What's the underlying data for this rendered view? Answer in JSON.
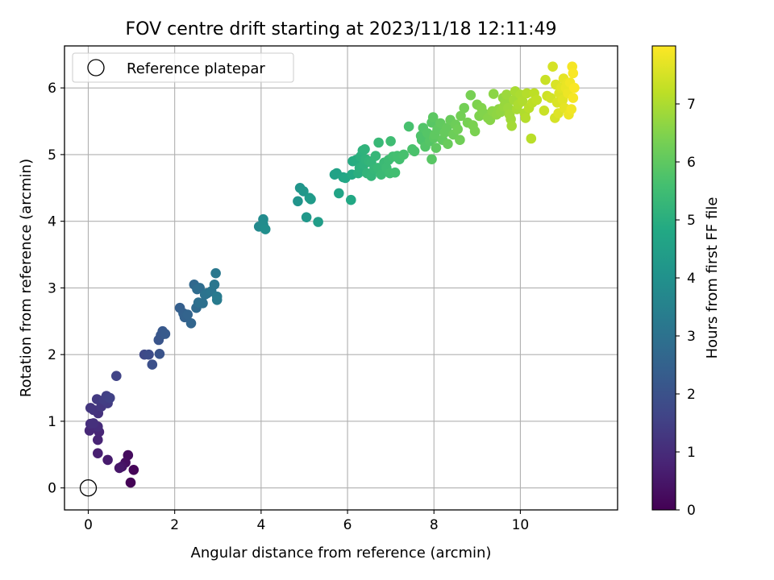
{
  "chart_data": {
    "type": "scatter",
    "title": "FOV centre drift starting at 2023/11/18 12:11:49",
    "xlabel": "Angular distance from reference (arcmin)",
    "ylabel": "Rotation from reference (arcmin)",
    "xlim": [
      -0.55,
      12.25
    ],
    "ylim": [
      -0.33,
      6.63
    ],
    "xticks": [
      0,
      2,
      4,
      6,
      8,
      10
    ],
    "yticks": [
      0,
      1,
      2,
      3,
      4,
      5,
      6
    ],
    "grid": true,
    "legend": {
      "position": "top-left",
      "entries": [
        "Reference platepar"
      ]
    },
    "reference_point": {
      "label": "Reference platepar",
      "x": 0,
      "y": 0
    },
    "colorbar": {
      "label": "Hours from first FF file",
      "colormap": "viridis",
      "range": [
        0,
        8
      ],
      "ticks": [
        0,
        1,
        2,
        3,
        4,
        5,
        6,
        7
      ]
    },
    "point_fields": [
      "x_arcmin",
      "y_arcmin",
      "hours"
    ],
    "points": [
      [
        0.98,
        0.08,
        0.05
      ],
      [
        1.05,
        0.27,
        0.1
      ],
      [
        0.92,
        0.49,
        0.25
      ],
      [
        0.86,
        0.38,
        0.3
      ],
      [
        0.78,
        0.32,
        0.4
      ],
      [
        0.72,
        0.3,
        0.5
      ],
      [
        0.45,
        0.42,
        0.6
      ],
      [
        0.22,
        0.52,
        0.7
      ],
      [
        0.22,
        0.72,
        0.8
      ],
      [
        0.25,
        0.84,
        0.85
      ],
      [
        0.03,
        0.86,
        0.9
      ],
      [
        0.12,
        0.93,
        0.95
      ],
      [
        0.22,
        0.92,
        1.0
      ],
      [
        0.05,
        0.96,
        1.05
      ],
      [
        0.12,
        0.97,
        1.1
      ],
      [
        0.23,
        1.12,
        1.15
      ],
      [
        0.12,
        1.17,
        1.2
      ],
      [
        0.05,
        1.2,
        1.25
      ],
      [
        0.3,
        1.22,
        1.3
      ],
      [
        0.2,
        1.33,
        1.35
      ],
      [
        0.45,
        1.27,
        1.4
      ],
      [
        0.36,
        1.32,
        1.45
      ],
      [
        0.42,
        1.38,
        1.5
      ],
      [
        0.5,
        1.35,
        1.55
      ],
      [
        0.65,
        1.68,
        1.6
      ],
      [
        1.3,
        2.0,
        1.75
      ],
      [
        1.4,
        2.0,
        1.85
      ],
      [
        1.48,
        1.85,
        1.95
      ],
      [
        1.65,
        2.01,
        2.05
      ],
      [
        1.63,
        2.22,
        2.1
      ],
      [
        1.68,
        2.29,
        2.15
      ],
      [
        1.72,
        2.35,
        2.2
      ],
      [
        1.78,
        2.31,
        2.25
      ],
      [
        2.12,
        2.7,
        2.4
      ],
      [
        2.2,
        2.62,
        2.45
      ],
      [
        2.23,
        2.56,
        2.5
      ],
      [
        2.3,
        2.6,
        2.55
      ],
      [
        2.38,
        2.47,
        2.6
      ],
      [
        2.45,
        3.05,
        2.7
      ],
      [
        2.5,
        2.7,
        2.75
      ],
      [
        2.52,
        2.98,
        2.8
      ],
      [
        2.58,
        3.0,
        2.85
      ],
      [
        2.55,
        2.78,
        2.9
      ],
      [
        2.65,
        2.77,
        2.95
      ],
      [
        2.7,
        2.9,
        3.0
      ],
      [
        2.75,
        2.92,
        3.05
      ],
      [
        2.85,
        2.95,
        3.1
      ],
      [
        2.92,
        3.05,
        3.15
      ],
      [
        2.95,
        3.22,
        3.2
      ],
      [
        2.98,
        2.87,
        3.25
      ],
      [
        2.98,
        2.82,
        3.3
      ],
      [
        3.95,
        3.92,
        3.75
      ],
      [
        4.05,
        4.03,
        3.8
      ],
      [
        4.05,
        3.95,
        3.85
      ],
      [
        4.1,
        3.88,
        3.9
      ],
      [
        4.85,
        4.3,
        4.1
      ],
      [
        4.9,
        4.5,
        4.15
      ],
      [
        4.98,
        4.45,
        4.2
      ],
      [
        5.05,
        4.06,
        4.25
      ],
      [
        5.12,
        4.35,
        4.3
      ],
      [
        5.15,
        4.33,
        4.35
      ],
      [
        5.32,
        3.99,
        4.4
      ],
      [
        5.7,
        4.7,
        4.55
      ],
      [
        5.75,
        4.72,
        4.6
      ],
      [
        5.8,
        4.42,
        4.65
      ],
      [
        5.9,
        4.66,
        4.7
      ],
      [
        5.95,
        4.65,
        4.75
      ],
      [
        6.08,
        4.32,
        4.8
      ],
      [
        6.1,
        4.7,
        4.85
      ],
      [
        6.12,
        4.9,
        4.9
      ],
      [
        6.2,
        4.92,
        4.95
      ],
      [
        6.25,
        4.72,
        5.0
      ],
      [
        6.28,
        4.8,
        5.05
      ],
      [
        6.3,
        4.97,
        5.05
      ],
      [
        6.35,
        5.06,
        5.1
      ],
      [
        6.38,
        4.85,
        5.1
      ],
      [
        6.4,
        5.08,
        5.15
      ],
      [
        6.42,
        4.93,
        5.15
      ],
      [
        6.45,
        4.72,
        5.2
      ],
      [
        6.5,
        4.9,
        5.2
      ],
      [
        6.55,
        4.68,
        5.25
      ],
      [
        6.55,
        4.88,
        5.25
      ],
      [
        6.62,
        4.78,
        5.3
      ],
      [
        6.65,
        4.98,
        5.3
      ],
      [
        6.7,
        4.8,
        5.35
      ],
      [
        6.72,
        5.18,
        5.35
      ],
      [
        6.78,
        4.7,
        5.4
      ],
      [
        6.85,
        4.88,
        5.4
      ],
      [
        6.9,
        4.8,
        5.45
      ],
      [
        6.95,
        4.92,
        5.45
      ],
      [
        6.98,
        4.72,
        5.5
      ],
      [
        7.0,
        5.2,
        5.5
      ],
      [
        7.05,
        4.97,
        5.55
      ],
      [
        7.1,
        4.73,
        5.55
      ],
      [
        7.15,
        4.98,
        5.6
      ],
      [
        7.2,
        4.93,
        5.6
      ],
      [
        7.3,
        5.0,
        5.65
      ],
      [
        7.42,
        5.42,
        5.65
      ],
      [
        7.5,
        5.08,
        5.7
      ],
      [
        7.55,
        5.05,
        5.7
      ],
      [
        7.7,
        5.28,
        5.75
      ],
      [
        7.72,
        5.22,
        5.75
      ],
      [
        7.75,
        5.4,
        5.8
      ],
      [
        7.8,
        5.12,
        5.8
      ],
      [
        7.85,
        5.32,
        5.85
      ],
      [
        7.9,
        5.2,
        5.85
      ],
      [
        7.95,
        5.48,
        5.9
      ],
      [
        7.95,
        4.93,
        5.9
      ],
      [
        7.98,
        5.56,
        5.95
      ],
      [
        8.0,
        5.25,
        5.95
      ],
      [
        8.02,
        5.3,
        6.0
      ],
      [
        8.05,
        5.1,
        6.0
      ],
      [
        8.08,
        5.38,
        6.0
      ],
      [
        8.15,
        5.47,
        6.05
      ],
      [
        8.2,
        5.22,
        6.05
      ],
      [
        8.25,
        5.33,
        6.1
      ],
      [
        8.3,
        5.4,
        6.1
      ],
      [
        8.32,
        5.16,
        6.15
      ],
      [
        8.38,
        5.52,
        6.15
      ],
      [
        8.45,
        5.3,
        6.2
      ],
      [
        8.5,
        5.45,
        6.2
      ],
      [
        8.55,
        5.38,
        6.25
      ],
      [
        8.6,
        5.22,
        6.25
      ],
      [
        8.62,
        5.58,
        6.3
      ],
      [
        8.7,
        5.7,
        6.3
      ],
      [
        8.78,
        5.48,
        6.35
      ],
      [
        8.85,
        5.89,
        6.35
      ],
      [
        8.9,
        5.44,
        6.4
      ],
      [
        8.95,
        5.35,
        6.4
      ],
      [
        9.0,
        5.75,
        6.45
      ],
      [
        9.05,
        5.58,
        6.45
      ],
      [
        9.1,
        5.7,
        6.5
      ],
      [
        9.15,
        5.62,
        6.5
      ],
      [
        9.25,
        5.55,
        6.55
      ],
      [
        9.3,
        5.52,
        6.55
      ],
      [
        9.35,
        5.65,
        6.6
      ],
      [
        9.38,
        5.91,
        6.6
      ],
      [
        9.45,
        5.6,
        6.65
      ],
      [
        9.5,
        5.68,
        6.65
      ],
      [
        9.55,
        5.64,
        6.7
      ],
      [
        9.6,
        5.85,
        6.7
      ],
      [
        9.62,
        5.72,
        6.75
      ],
      [
        9.65,
        5.78,
        6.75
      ],
      [
        9.68,
        5.9,
        6.8
      ],
      [
        9.72,
        5.7,
        6.8
      ],
      [
        9.75,
        5.6,
        6.85
      ],
      [
        9.78,
        5.53,
        6.85
      ],
      [
        9.8,
        5.43,
        6.9
      ],
      [
        9.85,
        5.82,
        6.9
      ],
      [
        9.88,
        5.95,
        6.95
      ],
      [
        9.92,
        5.68,
        6.95
      ],
      [
        9.95,
        5.75,
        7.0
      ],
      [
        10.0,
        5.9,
        7.0
      ],
      [
        10.05,
        5.8,
        7.05
      ],
      [
        10.1,
        5.62,
        7.05
      ],
      [
        10.12,
        5.55,
        7.1
      ],
      [
        10.15,
        5.92,
        7.1
      ],
      [
        10.2,
        5.7,
        7.15
      ],
      [
        10.25,
        5.24,
        7.15
      ],
      [
        10.28,
        5.78,
        7.2
      ],
      [
        10.32,
        5.92,
        7.2
      ],
      [
        10.38,
        5.82,
        7.25
      ],
      [
        10.55,
        5.66,
        7.35
      ],
      [
        10.58,
        6.12,
        7.35
      ],
      [
        10.62,
        5.88,
        7.4
      ],
      [
        10.7,
        5.85,
        7.45
      ],
      [
        10.75,
        6.32,
        7.5
      ],
      [
        10.8,
        5.55,
        7.5
      ],
      [
        10.82,
        6.05,
        7.55
      ],
      [
        10.85,
        5.78,
        7.55
      ],
      [
        10.88,
        5.62,
        7.6
      ],
      [
        10.9,
        5.92,
        7.6
      ],
      [
        10.95,
        6.0,
        7.65
      ],
      [
        10.98,
        5.82,
        7.65
      ],
      [
        11.0,
        6.14,
        7.7
      ],
      [
        11.02,
        5.7,
        7.7
      ],
      [
        11.05,
        6.0,
        7.75
      ],
      [
        11.08,
        6.07,
        7.75
      ],
      [
        11.1,
        5.92,
        7.8
      ],
      [
        11.12,
        5.6,
        7.8
      ],
      [
        11.15,
        6.08,
        7.85
      ],
      [
        11.18,
        5.68,
        7.85
      ],
      [
        11.2,
        6.32,
        7.9
      ],
      [
        11.22,
        5.85,
        7.9
      ],
      [
        11.22,
        6.22,
        7.95
      ],
      [
        11.25,
        6.0,
        7.95
      ]
    ]
  }
}
